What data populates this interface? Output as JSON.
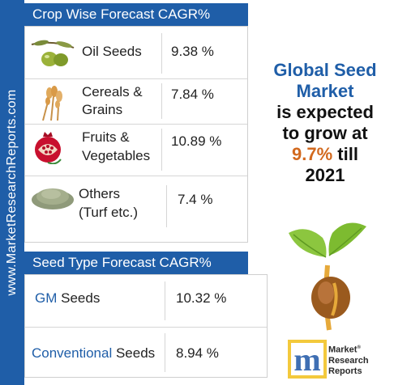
{
  "sidebar": {
    "url": "www.MarketResearchReports.com"
  },
  "crop_section": {
    "title": "Crop Wise Forecast CAGR%",
    "rows": [
      {
        "name_line1": "Oil Seeds",
        "name_line2": "",
        "cagr": "9.38 %",
        "icon": "olive-icon"
      },
      {
        "name_line1": "Cereals &",
        "name_line2": "Grains",
        "cagr": "7.84 %",
        "icon": "wheat-icon"
      },
      {
        "name_line1": "Fruits &",
        "name_line2": "Vegetables",
        "cagr": "10.89 %",
        "icon": "pomegranate-icon"
      },
      {
        "name_line1": "Others",
        "name_line2": "(Turf etc.)",
        "cagr": "7.4 %",
        "icon": "turf-seed-pile-icon"
      }
    ]
  },
  "seed_section": {
    "title": "Seed Type Forecast CAGR%",
    "rows": [
      {
        "prefix": "GM",
        "suffix": " Seeds",
        "cagr": "10.32 %"
      },
      {
        "prefix": "Conventional",
        "suffix": " Seeds",
        "cagr": "8.94 %"
      }
    ]
  },
  "headline": {
    "line1": "Global Seed",
    "line2": "Market",
    "line3": "is expected",
    "line4": "to grow at",
    "highlight": "9.7%",
    "after_highlight": " till",
    "year": "2021"
  },
  "illustration": {
    "icon": "sprouting-seed-icon"
  },
  "logo": {
    "mark": "m",
    "line1": "Market",
    "line2": "Research",
    "line3": "Reports",
    "registered": "®"
  },
  "colors": {
    "brand_blue": "#1f5ea8",
    "highlight_orange": "#d2691e"
  }
}
